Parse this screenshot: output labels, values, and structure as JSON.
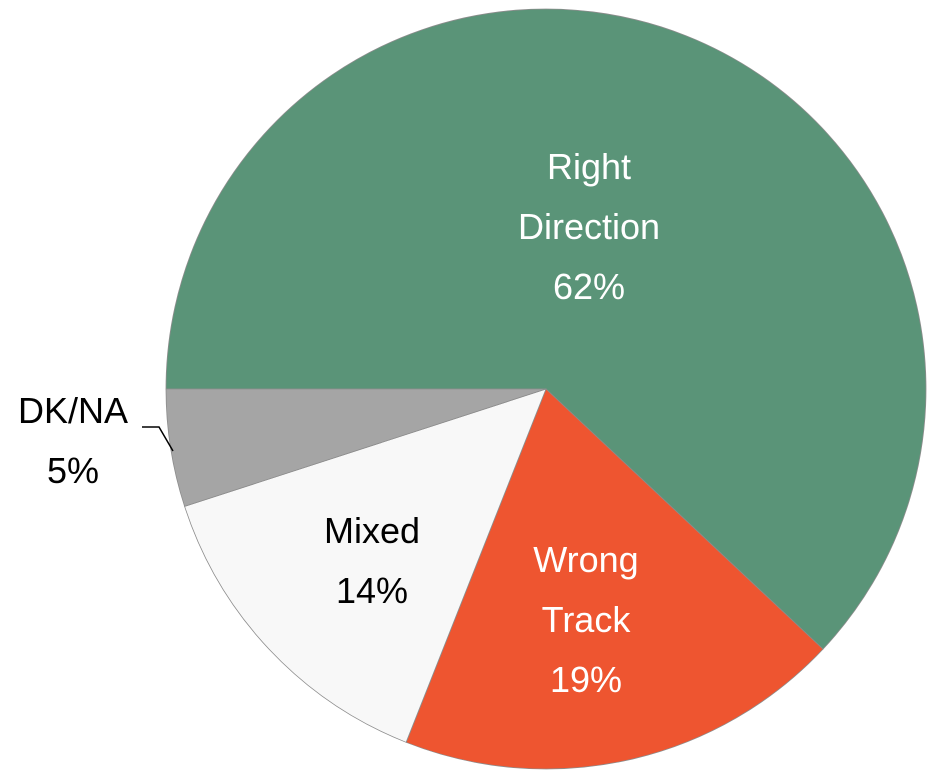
{
  "chart_data": {
    "type": "pie",
    "categories": [
      "Right Direction",
      "Wrong Track",
      "Mixed",
      "DK/NA"
    ],
    "values": [
      62,
      19,
      14,
      5
    ],
    "value_labels": [
      "62%",
      "19%",
      "14%",
      "5%"
    ],
    "colors": [
      "#5a9478",
      "#ee5530",
      "#f8f8f8",
      "#a5a5a5"
    ]
  }
}
